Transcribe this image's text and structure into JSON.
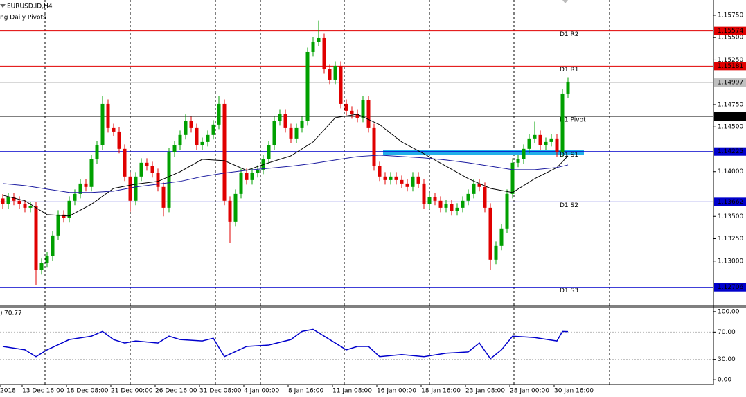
{
  "chart_data": {
    "type": "candlestick",
    "title": "EURUSD.ID,H4",
    "indicator_label": "ng Daily Pivots",
    "categories": [
      "2018",
      null,
      null,
      null,
      "13 Dec 16:00",
      null,
      null,
      null,
      null,
      null,
      null,
      null,
      "18 Dec 08:00",
      null,
      null,
      null,
      null,
      null,
      null,
      null,
      "21 Dec 00:00",
      null,
      null,
      null,
      null,
      null,
      null,
      null,
      "26 Dec 16:00",
      null,
      null,
      null,
      null,
      null,
      null,
      null,
      "31 Dec 08:00",
      null,
      null,
      null,
      null,
      null,
      null,
      null,
      "4 Jan 00:00",
      null,
      null,
      null,
      null,
      null,
      null,
      null,
      "8 Jan 16:00",
      null,
      null,
      null,
      null,
      null,
      null,
      null,
      "11 Jan 08:00",
      null,
      null,
      null,
      null,
      null,
      null,
      null,
      "16 Jan 00:00",
      null,
      null,
      null,
      null,
      null,
      null,
      null,
      "18 Jan 16:00",
      null,
      null,
      null,
      null,
      null,
      null,
      null,
      "23 Jan 08:00",
      null,
      null,
      null,
      null,
      null,
      null,
      null,
      "28 Jan 00:00",
      null,
      null,
      null,
      null,
      null,
      null,
      null,
      "30 Jan 16:00",
      null,
      null
    ],
    "up_color": "#00a000",
    "down_color": "#e00000",
    "candles": [
      [
        1.137,
        1.1375,
        1.13585,
        1.13635
      ],
      [
        1.13635,
        1.13762,
        1.13585,
        1.13712
      ],
      [
        1.13712,
        1.13762,
        1.13624,
        1.13674
      ],
      [
        1.13674,
        1.13724,
        1.13585,
        1.13635
      ],
      [
        1.13635,
        1.13685,
        1.13546,
        1.13596
      ],
      [
        1.13596,
        1.13662,
        1.13546,
        1.13612
      ],
      [
        1.13612,
        1.13662,
        1.1273,
        1.12899
      ],
      [
        1.12899,
        1.13027,
        1.12849,
        1.12977
      ],
      [
        1.12977,
        1.13104,
        1.12927,
        1.13054
      ],
      [
        1.13054,
        1.13336,
        1.13004,
        1.13286
      ],
      [
        1.13286,
        1.13569,
        1.13236,
        1.13519
      ],
      [
        1.13519,
        1.13569,
        1.1343,
        1.1348
      ],
      [
        1.1348,
        1.13724,
        1.1343,
        1.13674
      ],
      [
        1.13674,
        1.13801,
        1.13624,
        1.13751
      ],
      [
        1.13751,
        1.13917,
        1.13701,
        1.13867
      ],
      [
        1.13867,
        1.13917,
        1.13779,
        1.13829
      ],
      [
        1.13829,
        1.14188,
        1.13779,
        1.14138
      ],
      [
        1.14138,
        1.14343,
        1.14088,
        1.14293
      ],
      [
        1.14293,
        1.1485,
        1.14243,
        1.14758
      ],
      [
        1.14758,
        1.14808,
        1.14437,
        1.14487
      ],
      [
        1.14487,
        1.14537,
        1.14398,
        1.14448
      ],
      [
        1.14448,
        1.14498,
        1.14205,
        1.14255
      ],
      [
        1.14255,
        1.14305,
        1.13895,
        1.13945
      ],
      [
        1.13945,
        1.13995,
        1.1355,
        1.13674
      ],
      [
        1.13674,
        1.13995,
        1.13624,
        1.13945
      ],
      [
        1.13945,
        1.1415,
        1.13895,
        1.141
      ],
      [
        1.141,
        1.1415,
        1.14011,
        1.14061
      ],
      [
        1.14061,
        1.14111,
        1.13934,
        1.13984
      ],
      [
        1.13984,
        1.14034,
        1.13779,
        1.13829
      ],
      [
        1.13829,
        1.13879,
        1.135,
        1.13596
      ],
      [
        1.13596,
        1.14266,
        1.13546,
        1.14216
      ],
      [
        1.14216,
        1.14343,
        1.14166,
        1.14293
      ],
      [
        1.14293,
        1.1446,
        1.14243,
        1.1441
      ],
      [
        1.1441,
        1.1464,
        1.1436,
        1.14564
      ],
      [
        1.14564,
        1.14614,
        1.14437,
        1.14487
      ],
      [
        1.14487,
        1.14537,
        1.14243,
        1.14293
      ],
      [
        1.14293,
        1.14382,
        1.14243,
        1.14332
      ],
      [
        1.14332,
        1.1446,
        1.14282,
        1.1441
      ],
      [
        1.1441,
        1.14576,
        1.1436,
        1.14526
      ],
      [
        1.14526,
        1.1485,
        1.14476,
        1.14758
      ],
      [
        1.14758,
        1.14808,
        1.13624,
        1.13674
      ],
      [
        1.13674,
        1.13724,
        1.132,
        1.13441
      ],
      [
        1.13441,
        1.13801,
        1.13391,
        1.13751
      ],
      [
        1.13751,
        1.14034,
        1.13701,
        1.13984
      ],
      [
        1.13984,
        1.14034,
        1.13856,
        1.13906
      ],
      [
        1.13906,
        1.14034,
        1.13856,
        1.13984
      ],
      [
        1.13984,
        1.14072,
        1.13934,
        1.14022
      ],
      [
        1.14022,
        1.14188,
        1.13972,
        1.14138
      ],
      [
        1.14138,
        1.14343,
        1.14088,
        1.14293
      ],
      [
        1.14293,
        1.14614,
        1.14243,
        1.14564
      ],
      [
        1.14564,
        1.14692,
        1.14514,
        1.14642
      ],
      [
        1.14642,
        1.14692,
        1.14437,
        1.14487
      ],
      [
        1.14487,
        1.14537,
        1.14321,
        1.14371
      ],
      [
        1.14371,
        1.14537,
        1.14321,
        1.14487
      ],
      [
        1.14487,
        1.14614,
        1.14437,
        1.14564
      ],
      [
        1.14564,
        1.15389,
        1.14514,
        1.15339
      ],
      [
        1.15339,
        1.15505,
        1.15289,
        1.15455
      ],
      [
        1.15455,
        1.1569,
        1.15405,
        1.15494
      ],
      [
        1.15494,
        1.15544,
        1.15095,
        1.15145
      ],
      [
        1.15145,
        1.15195,
        1.14979,
        1.15029
      ],
      [
        1.15029,
        1.15234,
        1.14979,
        1.15184
      ],
      [
        1.15184,
        1.15234,
        1.14708,
        1.14758
      ],
      [
        1.14758,
        1.14808,
        1.14631,
        1.14681
      ],
      [
        1.14681,
        1.14731,
        1.14592,
        1.14642
      ],
      [
        1.14642,
        1.14692,
        1.14553,
        1.14603
      ],
      [
        1.14603,
        1.14847,
        1.14553,
        1.14797
      ],
      [
        1.14797,
        1.14847,
        1.14437,
        1.14487
      ],
      [
        1.14487,
        1.14537,
        1.14011,
        1.14061
      ],
      [
        1.14061,
        1.14111,
        1.13895,
        1.13945
      ],
      [
        1.13945,
        1.13995,
        1.13856,
        1.13906
      ],
      [
        1.13906,
        1.13995,
        1.13856,
        1.13945
      ],
      [
        1.13945,
        1.13995,
        1.13856,
        1.13906
      ],
      [
        1.13906,
        1.13956,
        1.13817,
        1.13867
      ],
      [
        1.13867,
        1.13917,
        1.13779,
        1.13829
      ],
      [
        1.13829,
        1.13995,
        1.13779,
        1.13945
      ],
      [
        1.13945,
        1.13995,
        1.13817,
        1.13867
      ],
      [
        1.13867,
        1.13917,
        1.13585,
        1.13635
      ],
      [
        1.13635,
        1.13762,
        1.13585,
        1.13712
      ],
      [
        1.13712,
        1.13762,
        1.13624,
        1.13674
      ],
      [
        1.13674,
        1.13724,
        1.13546,
        1.13596
      ],
      [
        1.13596,
        1.13685,
        1.13546,
        1.13635
      ],
      [
        1.13635,
        1.13685,
        1.13508,
        1.13558
      ],
      [
        1.13558,
        1.13646,
        1.13508,
        1.13596
      ],
      [
        1.13596,
        1.13724,
        1.13546,
        1.13674
      ],
      [
        1.13674,
        1.13801,
        1.13624,
        1.13751
      ],
      [
        1.13751,
        1.13917,
        1.13701,
        1.13867
      ],
      [
        1.13867,
        1.13917,
        1.13779,
        1.13829
      ],
      [
        1.13829,
        1.13879,
        1.13546,
        1.13596
      ],
      [
        1.13596,
        1.13646,
        1.129,
        1.13015
      ],
      [
        1.13015,
        1.1322,
        1.12965,
        1.1317
      ],
      [
        1.1317,
        1.13414,
        1.1312,
        1.13364
      ],
      [
        1.13364,
        1.13801,
        1.13314,
        1.13751
      ],
      [
        1.13751,
        1.1415,
        1.13701,
        1.141
      ],
      [
        1.141,
        1.14188,
        1.1405,
        1.14138
      ],
      [
        1.14138,
        1.14305,
        1.14088,
        1.14255
      ],
      [
        1.14255,
        1.14421,
        1.14205,
        1.14371
      ],
      [
        1.14371,
        1.1456,
        1.14321,
        1.1441
      ],
      [
        1.1441,
        1.1446,
        1.14243,
        1.14293
      ],
      [
        1.14293,
        1.14382,
        1.14243,
        1.14332
      ],
      [
        1.14332,
        1.14421,
        1.14282,
        1.14371
      ],
      [
        1.14371,
        1.14421,
        1.14166,
        1.14216
      ],
      [
        1.14216,
        1.14924,
        1.14166,
        1.14874
      ],
      [
        1.14874,
        1.15056,
        1.14824,
        1.15006
      ]
    ],
    "moving_averages": [
      {
        "color": "#000000",
        "x": [
          0,
          4,
          8,
          12,
          16,
          20,
          24,
          28,
          32,
          36,
          40,
          44,
          48,
          52,
          56,
          60,
          64,
          68,
          72,
          76,
          80,
          84,
          88,
          92,
          96,
          100,
          102
        ],
        "values": [
          1.13736,
          1.13674,
          1.13519,
          1.13503,
          1.13635,
          1.13813,
          1.1386,
          1.13891,
          1.13999,
          1.14138,
          1.14123,
          1.14015,
          1.141,
          1.14177,
          1.14332,
          1.14603,
          1.14642,
          1.14526,
          1.14332,
          1.142,
          1.14061,
          1.13922,
          1.13813,
          1.13767,
          1.13922,
          1.14046,
          1.14177
        ]
      },
      {
        "color": "#1c1ca0",
        "x": [
          0,
          4,
          8,
          12,
          16,
          20,
          24,
          28,
          32,
          36,
          40,
          44,
          48,
          52,
          56,
          60,
          64,
          68,
          72,
          76,
          80,
          84,
          88,
          92,
          96,
          100,
          102
        ],
        "values": [
          1.13867,
          1.13844,
          1.13805,
          1.13767,
          1.13767,
          1.13782,
          1.13829,
          1.1386,
          1.13891,
          1.13945,
          1.13984,
          1.14015,
          1.14038,
          1.14061,
          1.14092,
          1.14131,
          1.14169,
          1.14185,
          1.14169,
          1.14154,
          1.14131,
          1.141,
          1.14061,
          1.14022,
          1.14022,
          1.14046,
          1.14076
        ]
      }
    ],
    "ylim": [
      1.1251,
      1.1592
    ],
    "yticks": [
      {
        "value": 1.1575,
        "label": "1.15750"
      },
      {
        "value": 1.155,
        "label": "1.15500"
      },
      {
        "value": 1.1525,
        "label": "1.15250"
      },
      {
        "value": 1.1475,
        "label": "1.14750"
      },
      {
        "value": 1.145,
        "label": "1.14500"
      },
      {
        "value": 1.14,
        "label": "1.14000"
      },
      {
        "value": 1.135,
        "label": "1.13500"
      },
      {
        "value": 1.1325,
        "label": "1.13250"
      },
      {
        "value": 1.13,
        "label": "1.13000"
      }
    ],
    "current_price": 1.14997,
    "current_price_color": "#c0c0c0",
    "levels": [
      {
        "label": "D1 R2",
        "value": 1.15574,
        "color": "#e00000"
      },
      {
        "label": "D1 R1",
        "value": 1.15181,
        "color": "#e00000"
      },
      {
        "label": "D1 Pivot",
        "value": 1.14618,
        "color": "#000000"
      },
      {
        "label": "D1 S1",
        "value": 1.14225,
        "color": "#0000cc"
      },
      {
        "label": "D1 S2",
        "value": 1.13662,
        "color": "#0000cc"
      },
      {
        "label": "D1 S3",
        "value": 1.12706,
        "color": "#0000cc"
      }
    ],
    "rsi": {
      "label": ")",
      "color": "#0000cc",
      "x": [
        0,
        4,
        6,
        8,
        12,
        16,
        18,
        20,
        22,
        24,
        28,
        30,
        32,
        36,
        38,
        40,
        44,
        48,
        52,
        54,
        56,
        60,
        62,
        64,
        66,
        68,
        72,
        76,
        80,
        84,
        86,
        88,
        90,
        92,
        96,
        100,
        101,
        102
      ],
      "values": [
        49,
        44,
        34,
        44,
        59,
        64,
        71,
        59,
        54,
        57,
        54,
        64,
        59,
        57,
        61,
        34,
        49,
        51,
        59,
        71,
        74,
        54,
        44,
        49,
        49,
        34,
        37,
        34,
        39,
        41,
        54,
        31,
        44,
        64,
        62,
        57,
        71,
        70.77
      ],
      "ylim": [
        -7,
        107
      ],
      "yticks": [
        {
          "value": 100,
          "label": "100.00"
        },
        {
          "value": 70,
          "label": "70.00"
        },
        {
          "value": 30,
          "label": "30.00"
        },
        {
          "value": 0,
          "label": "0.00"
        }
      ],
      "levels": [
        70,
        30
      ]
    }
  }
}
